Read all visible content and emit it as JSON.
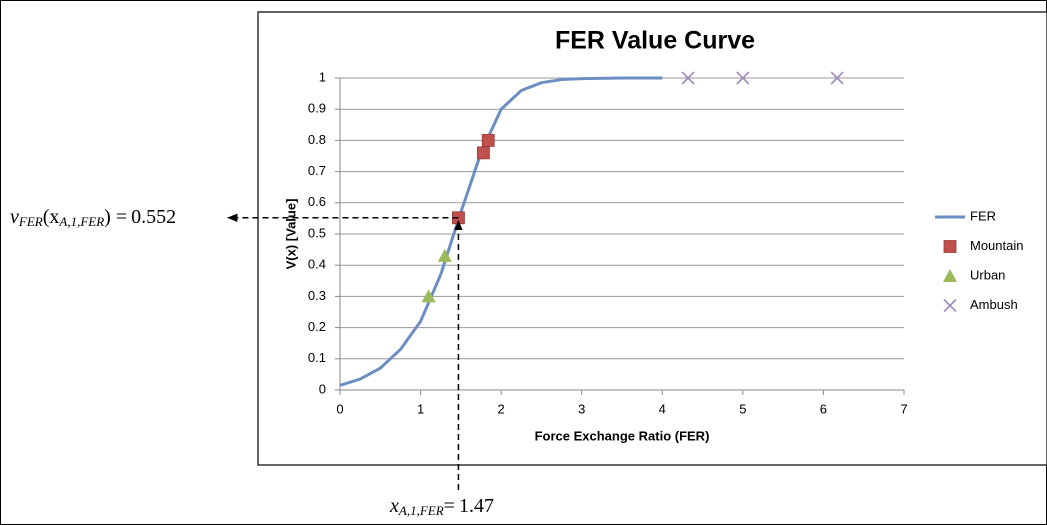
{
  "chart_data": {
    "type": "line",
    "title": "FER Value Curve",
    "x_label": "Force Exchange Ratio (FER)",
    "y_label": "V(x) [Value]",
    "xlim": [
      0,
      7
    ],
    "ylim": [
      0,
      1
    ],
    "xticks": [
      0,
      1,
      2,
      3,
      4,
      5,
      6,
      7
    ],
    "yticks": [
      0,
      0.1,
      0.2,
      0.3,
      0.4,
      0.5,
      0.6,
      0.7,
      0.8,
      0.9,
      1
    ],
    "grid": true,
    "legend": "right",
    "series": [
      {
        "name": "FER",
        "color": "#6b8fc2",
        "marker": "line",
        "x": [
          0,
          0.25,
          0.5,
          0.75,
          1,
          1.25,
          1.5,
          1.75,
          2,
          2.25,
          2.5,
          2.75,
          3,
          3.5,
          4
        ],
        "values": [
          0.015,
          0.035,
          0.07,
          0.13,
          0.22,
          0.37,
          0.57,
          0.76,
          0.9,
          0.96,
          0.985,
          0.995,
          0.998,
          1,
          1
        ]
      },
      {
        "name": "Mountain",
        "color": "#c0504d",
        "marker": "square",
        "x": [
          1.47,
          1.78,
          1.84
        ],
        "values": [
          0.552,
          0.76,
          0.8
        ]
      },
      {
        "name": "Urban",
        "color": "#9bbb59",
        "marker": "triangle",
        "x": [
          1.1,
          1.3
        ],
        "values": [
          0.3,
          0.43
        ]
      },
      {
        "name": "Ambush",
        "color": "#a08cc0",
        "marker": "cross",
        "x": [
          4.32,
          5.0,
          6.17
        ],
        "values": [
          1,
          1,
          1
        ]
      }
    ],
    "annotations": {
      "value_note": {
        "parts": [
          {
            "text": "v"
          },
          {
            "text": "FER",
            "sub": true
          },
          {
            "text": "(x"
          },
          {
            "text": "A,1,FER",
            "sub": true
          },
          {
            "text": ") ="
          }
        ],
        "value": 0.552
      },
      "x_note": {
        "parts": [
          {
            "text": "x"
          },
          {
            "text": "A,1,FER",
            "sub": true
          },
          {
            "text": "="
          }
        ],
        "value": 1.47
      }
    }
  }
}
